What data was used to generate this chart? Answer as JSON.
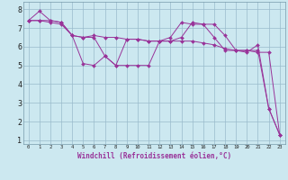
{
  "xlabel": "Windchill (Refroidissement éolien,°C)",
  "ylabel": "",
  "background_color": "#cce8f0",
  "line_color": "#993399",
  "grid_color": "#99bbcc",
  "xlim": [
    -0.5,
    23.5
  ],
  "ylim": [
    0.8,
    8.4
  ],
  "yticks": [
    1,
    2,
    3,
    4,
    5,
    6,
    7,
    8
  ],
  "xticks": [
    0,
    1,
    2,
    3,
    4,
    5,
    6,
    7,
    8,
    9,
    10,
    11,
    12,
    13,
    14,
    15,
    16,
    17,
    18,
    19,
    20,
    21,
    22,
    23
  ],
  "series": [
    [
      7.4,
      7.9,
      7.4,
      7.3,
      6.6,
      5.1,
      5.0,
      5.5,
      5.0,
      6.4,
      6.4,
      6.3,
      6.3,
      6.5,
      7.3,
      7.2,
      7.2,
      6.5,
      5.8,
      5.8,
      5.7,
      6.1,
      2.7,
      1.3
    ],
    [
      7.4,
      7.4,
      7.4,
      7.3,
      6.6,
      6.5,
      6.6,
      6.5,
      6.5,
      6.4,
      6.4,
      6.3,
      6.3,
      6.3,
      6.3,
      6.3,
      6.2,
      6.1,
      5.9,
      5.8,
      5.8,
      5.8,
      2.7,
      1.3
    ],
    [
      7.4,
      7.4,
      7.3,
      7.2,
      6.6,
      6.5,
      6.5,
      5.5,
      5.0,
      5.0,
      5.0,
      5.0,
      6.3,
      6.3,
      6.5,
      7.3,
      7.2,
      7.2,
      6.6,
      5.8,
      5.8,
      5.7,
      5.7,
      1.3
    ]
  ],
  "ytick_fontsize": 6.0,
  "xtick_fontsize": 4.0,
  "xlabel_fontsize": 5.5,
  "linewidth": 0.7,
  "markersize": 2.0
}
